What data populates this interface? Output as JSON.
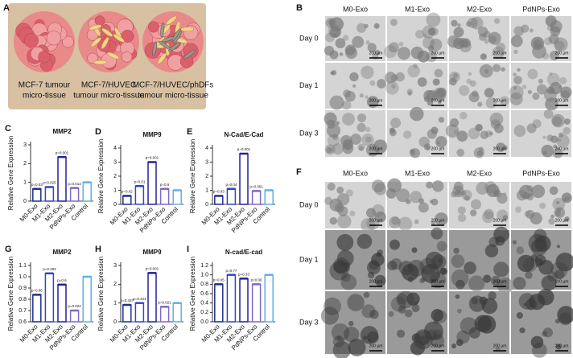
{
  "panel_a": {
    "label": "A",
    "captions": [
      [
        "MCF-7 tumour",
        "micro-tissue"
      ],
      [
        "MCF-7/HUVEC",
        "tumour micro-tissue"
      ],
      [
        "MCF-7/HUVEC/phDFs",
        "tumour micro-tissue"
      ]
    ]
  },
  "panel_b": {
    "label": "B",
    "columns": [
      "M0-Exo",
      "M1-Exo",
      "M2-Exo",
      "PdNPs-Exo"
    ],
    "rows": [
      "Day 0",
      "Day 1",
      "Day 3"
    ],
    "scale_bar": "200 µm"
  },
  "panel_f": {
    "label": "F",
    "columns": [
      "M0-Exo",
      "M1-Exo",
      "M2-Exo",
      "PdNPs-Exo"
    ],
    "rows": [
      "Day 0",
      "Day 1",
      "Day 3"
    ],
    "scale_bar": "200 µm"
  },
  "chart_data": [
    {
      "type": "bar",
      "panel": "C",
      "title": "MMP2",
      "ylabel": "Relative Gene Expression",
      "categories": [
        "M0-Exo",
        "M1-Exo",
        "M2-Exo",
        "PdNPs-Exo",
        "Control"
      ],
      "values": [
        0.65,
        0.75,
        2.35,
        0.7,
        1.0
      ],
      "annotations": [
        "p=0.03",
        "p=0.025",
        "p=0.001",
        "p=0.014"
      ],
      "colors": [
        "#1f2f8f",
        "#3344c8",
        "#22229a",
        "#7f68c8",
        "#5fb0e8"
      ],
      "ylim": [
        0,
        3
      ],
      "yticks": [
        0,
        1,
        2,
        3
      ]
    },
    {
      "type": "bar",
      "panel": "D",
      "title": "MMP9",
      "ylabel": "Relative Gene Expression",
      "categories": [
        "M0-Exo",
        "M1-Exo",
        "M2-Exo",
        "PdNPs-Exo",
        "Control"
      ],
      "values": [
        0.6,
        1.3,
        3.0,
        1.1,
        1.0
      ],
      "annotations": [
        "p=0.02",
        "p=0.01",
        "p=0.001",
        "p=0.5"
      ],
      "colors": [
        "#1f2f8f",
        "#3344c8",
        "#22229a",
        "#7f68c8",
        "#5fb0e8"
      ],
      "ylim": [
        0,
        4
      ],
      "yticks": [
        0,
        1,
        2,
        3,
        4
      ]
    },
    {
      "type": "bar",
      "panel": "E",
      "title": "N-Cad/E-Cad",
      "ylabel": "Relative Gene Expression",
      "categories": [
        "M0-Exo",
        "M1-Exo",
        "M2-Exo",
        "PdNPs-Exo",
        "Control"
      ],
      "values": [
        0.6,
        1.1,
        3.6,
        0.95,
        1.0
      ],
      "annotations": [
        "p=0.03",
        "p=0.04",
        "p=0.001",
        "p=0.361"
      ],
      "colors": [
        "#1f2f8f",
        "#3344c8",
        "#22229a",
        "#7f68c8",
        "#5fb0e8"
      ],
      "ylim": [
        0,
        4
      ],
      "yticks": [
        0,
        1,
        2,
        3,
        4
      ]
    },
    {
      "type": "bar",
      "panel": "G",
      "title": "MMP2",
      "ylabel": "Relative Gene Expression",
      "categories": [
        "M0-Exo",
        "M1-Exo",
        "M2-Exo",
        "PdNPs-Exo",
        "Control"
      ],
      "values": [
        0.84,
        1.03,
        0.93,
        0.7,
        1.0
      ],
      "annotations": [
        "p=0.06",
        "p=0.293",
        "p=0.6",
        "p=0.022"
      ],
      "colors": [
        "#1f2f8f",
        "#3344c8",
        "#22229a",
        "#7f68c8",
        "#5fb0e8"
      ],
      "ylim": [
        0.6,
        1.1
      ],
      "yticks": [
        0.6,
        0.7,
        0.8,
        0.9,
        {
          "value": 1,
          "label": "1.0"
        },
        1.1
      ]
    },
    {
      "type": "bar",
      "panel": "H",
      "title": "MMP9",
      "ylabel": "Relative Gene Expression",
      "categories": [
        "M0-Exo",
        "M1-Exo",
        "M2-Exo",
        "PdNPs-Exo",
        "Control"
      ],
      "values": [
        0.9,
        1.0,
        2.6,
        0.8,
        1.0
      ],
      "annotations": [
        "p=0.437",
        "p=0.224",
        "p=0.001",
        "p=0.021"
      ],
      "colors": [
        "#1f2f8f",
        "#3344c8",
        "#22229a",
        "#7f68c8",
        "#5fb0e8"
      ],
      "ylim": [
        0,
        3
      ],
      "yticks": [
        0,
        1,
        2,
        3
      ]
    },
    {
      "type": "bar",
      "panel": "I",
      "title": "N-cad/E-cad",
      "ylabel": "Relative Gene Expression",
      "categories": [
        "M0-Exo",
        "M1-Exo",
        "M2-Exo",
        "PdNPs-Exo",
        "Control"
      ],
      "values": [
        0.8,
        1.0,
        0.92,
        0.8,
        1.0
      ],
      "annotations": [
        "p=0.05",
        "p=0.77",
        "p=0.33",
        "p=0.06"
      ],
      "colors": [
        "#1f2f8f",
        "#3344c8",
        "#22229a",
        "#7f68c8",
        "#5fb0e8"
      ],
      "ylim": [
        0,
        1.2
      ],
      "yticks": [
        {
          "value": 0,
          "label": "0.0"
        },
        0.2,
        0.4,
        0.6,
        0.8,
        {
          "value": 1,
          "label": "1.0"
        },
        1.2
      ]
    }
  ]
}
